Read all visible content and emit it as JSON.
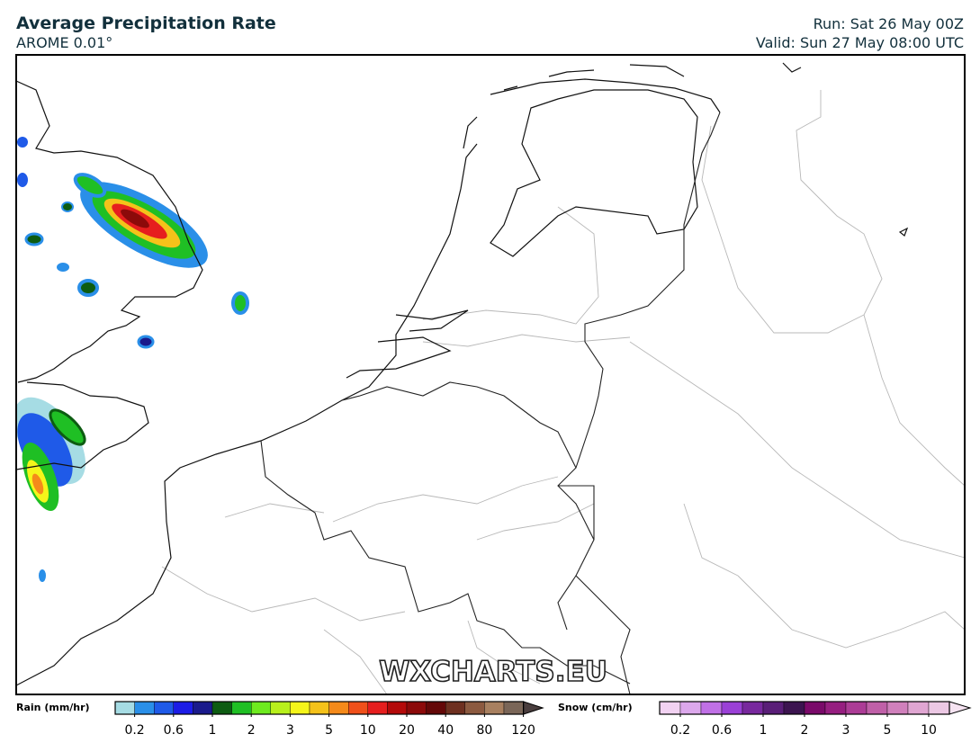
{
  "header": {
    "title": "Average Precipitation Rate",
    "subtitle": "AROME 0.01°",
    "run": "Run: Sat 26 May 00Z",
    "valid": "Valid: Sun 27 May 08:00 UTC"
  },
  "watermark": "WXCHARTS.EU",
  "legend": {
    "rain": {
      "label": "Rain (mm/hr)",
      "ticks": [
        "0.2",
        "0.6",
        "1",
        "2",
        "3",
        "5",
        "10",
        "20",
        "40",
        "80",
        "120"
      ],
      "colors": [
        "#a6dce4",
        "#2a8fe8",
        "#1f5ae8",
        "#1c1ce6",
        "#1a1a8c",
        "#0d5c12",
        "#1fbf24",
        "#6eea1f",
        "#b8f01c",
        "#f5f51a",
        "#f5c21a",
        "#f58a1a",
        "#f0501a",
        "#e61e1e",
        "#b40a0a",
        "#8c0a0a",
        "#640808",
        "#6e3020",
        "#8c5a40",
        "#a88060",
        "#7a6658",
        "#4a3e3e"
      ]
    },
    "snow": {
      "label": "Snow (cm/hr)",
      "ticks": [
        "0.2",
        "0.6",
        "1",
        "2",
        "3",
        "5",
        "10"
      ],
      "colors": [
        "#f2d2f2",
        "#dca8ec",
        "#c070e6",
        "#9a40d6",
        "#78289e",
        "#5a1e78",
        "#3c1450",
        "#7a0a6a",
        "#961e80",
        "#ac3c96",
        "#c060a8",
        "#d080bc",
        "#e0a6d2",
        "#ecc8e4",
        "#f6e4f2"
      ]
    }
  }
}
